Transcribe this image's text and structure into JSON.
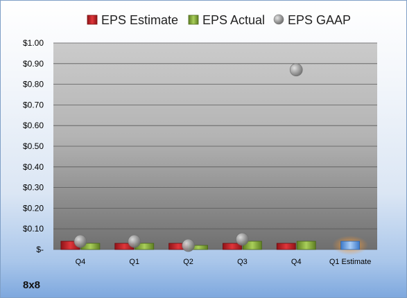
{
  "company_label": "8x8",
  "chart_data": {
    "type": "bar",
    "categories": [
      "Q4",
      "Q1",
      "Q2",
      "Q3",
      "Q4",
      "Q1 Estimate"
    ],
    "series": [
      {
        "name": "EPS Estimate",
        "kind": "bar",
        "color": "#c0282d",
        "values": [
          0.04,
          0.03,
          0.03,
          0.03,
          0.03,
          null
        ]
      },
      {
        "name": "EPS Actual",
        "kind": "bar",
        "color": "#8cb243",
        "values": [
          0.03,
          0.03,
          0.02,
          0.04,
          0.04,
          null
        ]
      },
      {
        "name": "EPS GAAP",
        "kind": "point",
        "color": "#a6a6a6",
        "values": [
          0.04,
          0.04,
          0.02,
          0.05,
          0.87,
          null
        ]
      }
    ],
    "estimate": {
      "category": "Q1 Estimate",
      "value": 0.04,
      "color": "#6fa6e6",
      "highlight": "#f08a24"
    },
    "y_ticks": [
      "$1.00",
      "$0.90",
      "$0.80",
      "$0.70",
      "$0.60",
      "$0.50",
      "$0.40",
      "$0.30",
      "$0.20",
      "$0.10",
      "$-"
    ],
    "ylim": [
      0,
      1.0
    ],
    "grid": true,
    "legend": "top"
  }
}
